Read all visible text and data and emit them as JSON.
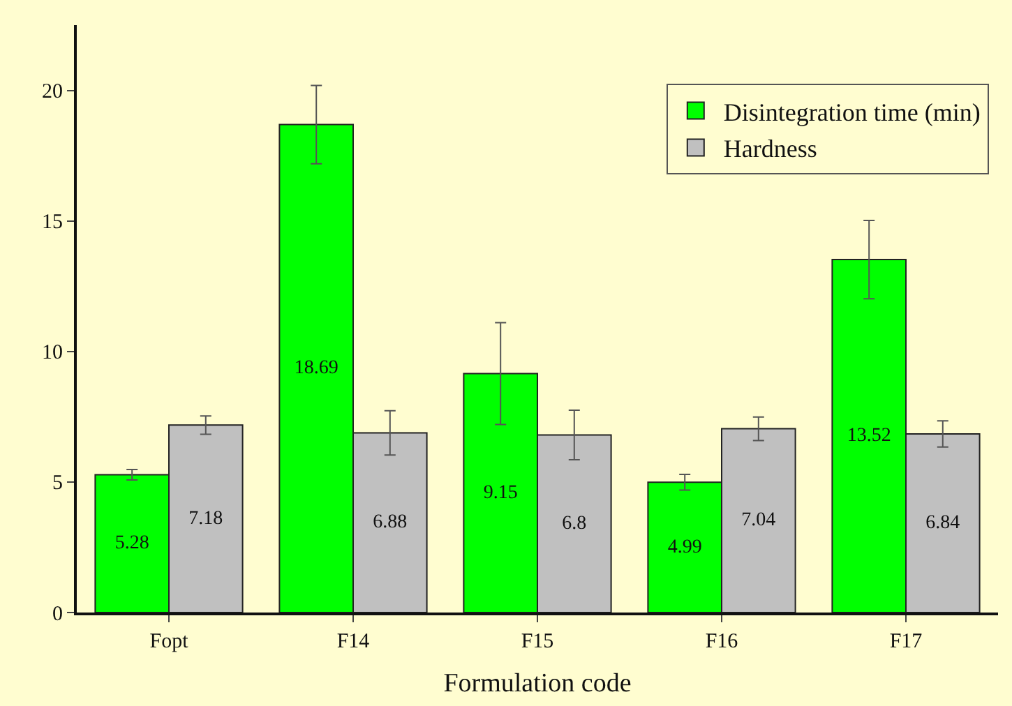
{
  "chart_data": {
    "type": "bar",
    "xlabel": "Formulation code",
    "categories": [
      "Fopt",
      "F14",
      "F15",
      "F16",
      "F17"
    ],
    "series": [
      {
        "name": "Disintegration time (min)",
        "color": "#00ff00",
        "values": [
          5.28,
          18.69,
          9.15,
          4.99,
          13.52
        ],
        "errors": [
          0.2,
          1.5,
          1.95,
          0.3,
          1.5
        ]
      },
      {
        "name": "Hardness",
        "color": "#c0c0c0",
        "values": [
          7.18,
          6.88,
          6.8,
          7.04,
          6.84
        ],
        "errors": [
          0.35,
          0.85,
          0.95,
          0.45,
          0.5
        ]
      }
    ],
    "ylim": [
      0,
      22.5
    ],
    "yticks": [
      0,
      5,
      10,
      15,
      20
    ],
    "grid": false,
    "legend": "top right",
    "data_labels": true
  }
}
